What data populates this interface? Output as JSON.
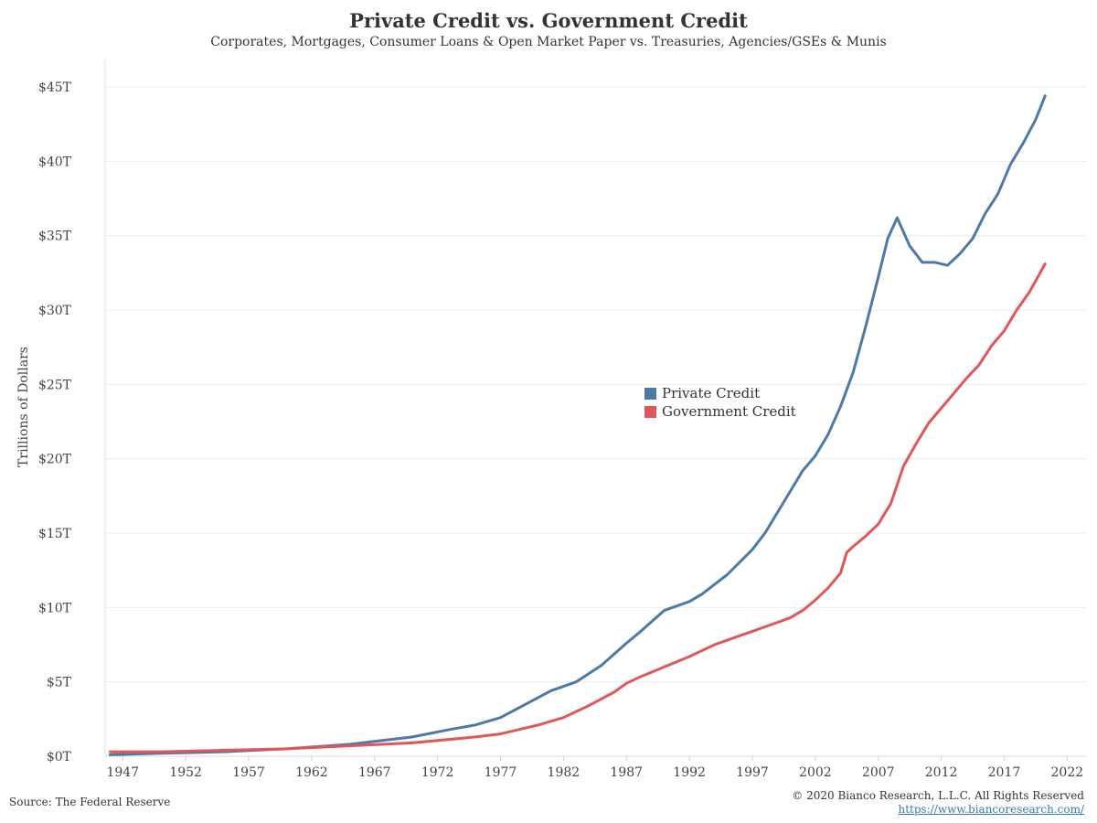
{
  "header": {
    "title": "Private Credit vs. Government Credit",
    "subtitle": "Corporates, Mortgages, Consumer Loans & Open Market Paper vs. Treasuries, Agencies/GSEs & Munis"
  },
  "footer": {
    "source": "Source: The Federal Reserve",
    "copyright": "© 2020 Bianco Research, L.L.C. All Rights Reserved",
    "url": "https://www.biancoresearch.com/"
  },
  "chart_data": {
    "type": "line",
    "title": "Private Credit vs. Government Credit",
    "subtitle": "Corporates, Mortgages, Consumer Loans & Open Market Paper vs. Treasuries, Agencies/GSEs & Munis",
    "xlabel": "",
    "ylabel": "Trillions of Dollars",
    "xlim": [
      1945.6,
      2023.5
    ],
    "ylim": [
      0,
      45
    ],
    "x_ticks": [
      1947,
      1952,
      1957,
      1962,
      1967,
      1972,
      1977,
      1982,
      1987,
      1992,
      1997,
      2002,
      2007,
      2012,
      2017,
      2022
    ],
    "x_tick_labels": [
      "1947",
      "1952",
      "1957",
      "1962",
      "1967",
      "1972",
      "1977",
      "1982",
      "1987",
      "1992",
      "1997",
      "2002",
      "2007",
      "2012",
      "2017",
      "2022"
    ],
    "y_ticks": [
      0,
      5,
      10,
      15,
      20,
      25,
      30,
      35,
      40,
      45
    ],
    "y_tick_labels": [
      "$0T",
      "$5T",
      "$10T",
      "$15T",
      "$20T",
      "$25T",
      "$30T",
      "$35T",
      "$40T",
      "$45T"
    ],
    "grid": "horizontal",
    "legend_position": "center-right",
    "series": [
      {
        "name": "Private Credit",
        "color": "#4e79a7",
        "x": [
          1946,
          1950,
          1955,
          1960,
          1965,
          1970,
          1973,
          1975,
          1977,
          1979,
          1981,
          1983,
          1985,
          1987,
          1988,
          1990,
          1992,
          1993,
          1995,
          1997,
          1998,
          2000,
          2001,
          2002,
          2003,
          2004,
          2005,
          2006,
          2007,
          2007.75,
          2008.5,
          2009.5,
          2010.5,
          2011.5,
          2012.5,
          2013.5,
          2014.5,
          2015.5,
          2016.5,
          2017.5,
          2018.5,
          2019.5,
          2020.25
        ],
        "y": [
          0.1,
          0.2,
          0.3,
          0.5,
          0.8,
          1.3,
          1.8,
          2.1,
          2.6,
          3.5,
          4.4,
          5.0,
          6.1,
          7.6,
          8.3,
          9.8,
          10.4,
          10.9,
          12.2,
          13.9,
          15.0,
          17.8,
          19.2,
          20.2,
          21.6,
          23.5,
          25.8,
          28.9,
          32.2,
          34.8,
          36.2,
          34.3,
          33.2,
          33.2,
          33.0,
          33.8,
          34.8,
          36.5,
          37.8,
          39.8,
          41.2,
          42.8,
          44.4
        ]
      },
      {
        "name": "Government Credit",
        "color": "#e15759",
        "x": [
          1946,
          1950,
          1955,
          1960,
          1965,
          1970,
          1975,
          1977,
          1980,
          1982,
          1984,
          1986,
          1987,
          1988,
          1990,
          1992,
          1994,
          1996,
          1997,
          1998,
          1999,
          2000,
          2001,
          2002,
          2003,
          2004,
          2004.5,
          2005,
          2006,
          2007,
          2008,
          2009,
          2010,
          2011,
          2012,
          2013,
          2014,
          2015,
          2016,
          2017,
          2018,
          2019,
          2020.25
        ],
        "y": [
          0.3,
          0.3,
          0.4,
          0.5,
          0.7,
          0.9,
          1.3,
          1.5,
          2.1,
          2.6,
          3.4,
          4.3,
          4.9,
          5.3,
          6.0,
          6.7,
          7.5,
          8.1,
          8.4,
          8.7,
          9.0,
          9.3,
          9.8,
          10.5,
          11.3,
          12.3,
          13.7,
          14.1,
          14.8,
          15.6,
          17.0,
          19.5,
          21.0,
          22.4,
          23.4,
          24.4,
          25.4,
          26.3,
          27.6,
          28.6,
          30.0,
          31.2,
          33.1
        ]
      }
    ]
  }
}
